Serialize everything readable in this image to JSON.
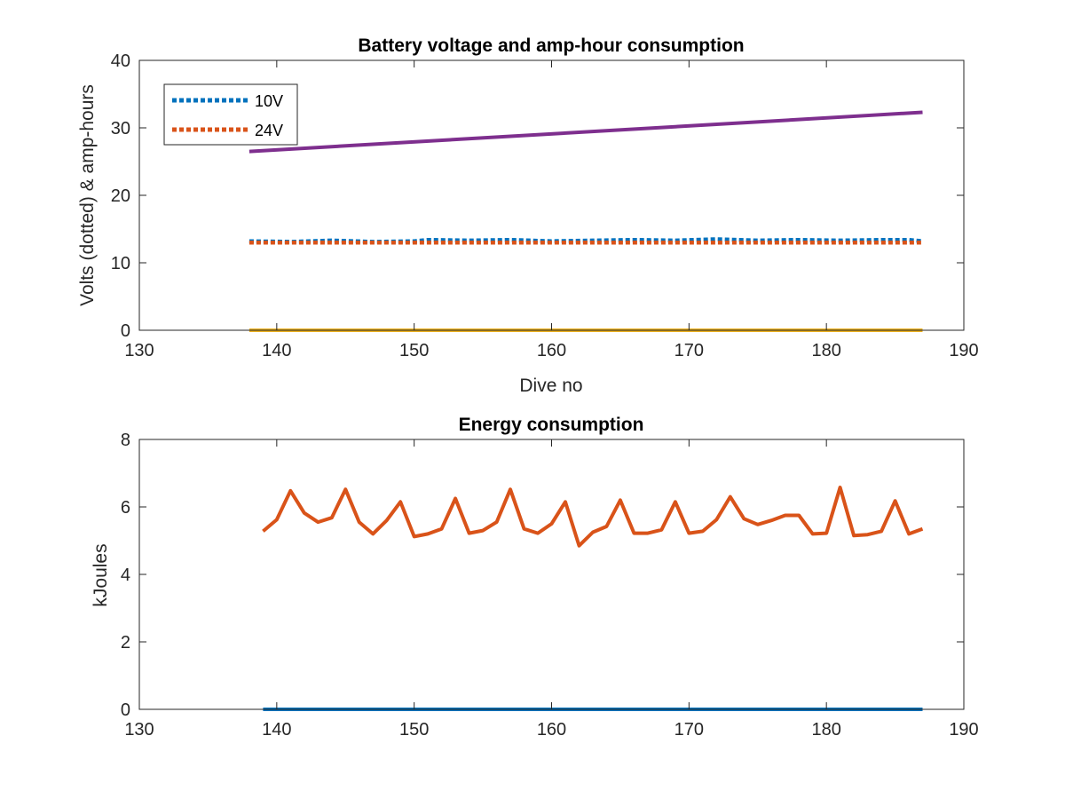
{
  "chart_data": [
    {
      "type": "line",
      "title": "Battery voltage and amp-hour consumption",
      "xlabel": "Dive no",
      "ylabel": "Volts (dotted) & amp-hours",
      "xlim": [
        130,
        190
      ],
      "ylim": [
        0,
        40
      ],
      "xticks": [
        130,
        140,
        150,
        160,
        170,
        180,
        190
      ],
      "yticks": [
        0,
        10,
        20,
        30,
        40
      ],
      "legend": {
        "position": "top-left",
        "entries": [
          "10V",
          "24V"
        ]
      },
      "grid": false,
      "series": [
        {
          "name": "10V",
          "style": "dotted",
          "color": "#0072BD",
          "x": [
            138,
            141,
            144,
            147,
            150,
            151,
            154,
            157,
            160,
            163,
            166,
            169,
            172,
            175,
            178,
            181,
            184,
            186,
            187
          ],
          "y": [
            13.2,
            13.1,
            13.3,
            13.1,
            13.2,
            13.4,
            13.3,
            13.4,
            13.2,
            13.3,
            13.4,
            13.3,
            13.5,
            13.3,
            13.4,
            13.3,
            13.4,
            13.4,
            13.2
          ]
        },
        {
          "name": "24V",
          "style": "dotted",
          "color": "#D95319",
          "x": [
            138,
            187
          ],
          "y": [
            13.0,
            13.0
          ]
        },
        {
          "style": "solid",
          "color": "#7E2F8E",
          "x": [
            138,
            187
          ],
          "y": [
            26.5,
            32.3
          ]
        },
        {
          "style": "solid",
          "color": "#EDB120",
          "x": [
            138,
            187
          ],
          "y": [
            0,
            0
          ]
        }
      ]
    },
    {
      "type": "line",
      "title": "Energy consumption",
      "xlabel": "",
      "ylabel": "kJoules",
      "xlim": [
        130,
        190
      ],
      "ylim": [
        0,
        8
      ],
      "xticks": [
        130,
        140,
        150,
        160,
        170,
        180,
        190
      ],
      "yticks": [
        0,
        2,
        4,
        6,
        8
      ],
      "grid": false,
      "series": [
        {
          "style": "solid",
          "color": "#0072BD",
          "x": [
            139,
            187
          ],
          "y": [
            0,
            0
          ]
        },
        {
          "style": "solid",
          "color": "#D95319",
          "x": [
            139,
            140,
            141,
            142,
            143,
            144,
            145,
            146,
            147,
            148,
            149,
            150,
            151,
            152,
            153,
            154,
            155,
            156,
            157,
            158,
            159,
            160,
            161,
            162,
            163,
            164,
            165,
            166,
            167,
            168,
            169,
            170,
            171,
            172,
            173,
            174,
            175,
            176,
            177,
            178,
            179,
            180,
            181,
            182,
            183,
            184,
            185,
            186,
            187
          ],
          "y": [
            5.28,
            5.62,
            6.48,
            5.82,
            5.55,
            5.68,
            6.52,
            5.55,
            5.2,
            5.6,
            6.15,
            5.12,
            5.2,
            5.35,
            6.25,
            5.22,
            5.3,
            5.55,
            6.52,
            5.35,
            5.22,
            5.5,
            6.15,
            4.85,
            5.25,
            5.42,
            6.2,
            5.22,
            5.22,
            5.32,
            6.15,
            5.22,
            5.28,
            5.62,
            6.3,
            5.65,
            5.48,
            5.6,
            5.75,
            5.75,
            5.2,
            5.22,
            6.58,
            5.15,
            5.18,
            5.28,
            6.18,
            5.2,
            5.35
          ]
        }
      ]
    }
  ]
}
